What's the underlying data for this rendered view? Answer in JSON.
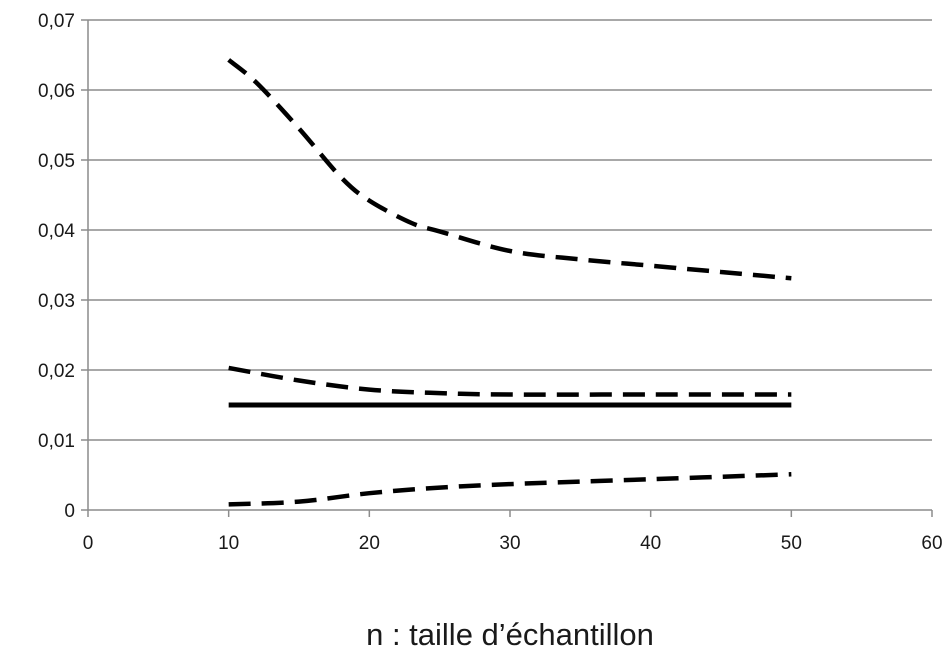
{
  "chart_data": {
    "type": "line",
    "title": "",
    "xlabel": "n : taille d’échantillon",
    "ylabel": "",
    "xlim": [
      0,
      60
    ],
    "ylim": [
      0,
      0.07
    ],
    "xticks": [
      0,
      10,
      20,
      30,
      40,
      50,
      60
    ],
    "xtick_labels": [
      "0",
      "10",
      "20",
      "30",
      "40",
      "50",
      "60"
    ],
    "yticks": [
      0,
      0.01,
      0.02,
      0.03,
      0.04,
      0.05,
      0.06,
      0.07
    ],
    "ytick_labels": [
      "0",
      "0,01",
      "0,02",
      "0,03",
      "0,04",
      "0,05",
      "0,06",
      "0,07"
    ],
    "grid": "horizontal",
    "legend": "none",
    "series": [
      {
        "style": "dashed",
        "color": "#000000",
        "x": [
          10,
          12,
          15,
          18,
          20,
          23,
          25,
          30,
          35,
          40,
          45,
          50
        ],
        "y": [
          0.0643,
          0.061,
          0.0545,
          0.0475,
          0.0442,
          0.041,
          0.0398,
          0.037,
          0.0358,
          0.0349,
          0.034,
          0.0331
        ]
      },
      {
        "style": "dashed",
        "color": "#000000",
        "x": [
          10,
          15,
          20,
          25,
          30,
          40,
          50
        ],
        "y": [
          0.0203,
          0.0185,
          0.0172,
          0.0167,
          0.0165,
          0.0165,
          0.0165
        ]
      },
      {
        "style": "solid",
        "color": "#000000",
        "x": [
          10,
          50
        ],
        "y": [
          0.015,
          0.015
        ]
      },
      {
        "style": "dashed",
        "color": "#000000",
        "x": [
          10,
          15,
          20,
          25,
          30,
          40,
          50
        ],
        "y": [
          0.0008,
          0.0012,
          0.0024,
          0.0032,
          0.0037,
          0.0044,
          0.0051
        ]
      }
    ]
  }
}
